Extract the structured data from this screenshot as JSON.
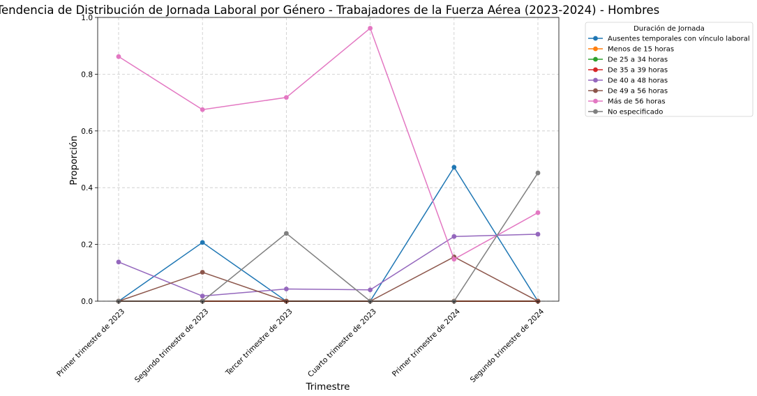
{
  "chart_data": {
    "type": "line",
    "title": "Tendencia de Distribución de Jornada Laboral por Género - Trabajadores de la Fuerza Aérea (2023-2024) - Hombres",
    "xlabel": "Trimestre",
    "ylabel": "Proporción",
    "ylim": [
      0,
      1
    ],
    "yticks": [
      "0.0",
      "0.2",
      "0.4",
      "0.6",
      "0.8",
      "1.0"
    ],
    "grid": true,
    "legend_title": "Duración de Jornada",
    "legend_position": "outside-right-top",
    "categories": [
      "Primer trimestre de 2023",
      "Segundo trimestre de 2023",
      "Tercer trimestre de 2023",
      "Cuarto trimestre de 2023",
      "Primer trimestre de 2024",
      "Segundo trimestre de 2024"
    ],
    "series": [
      {
        "name": "Ausentes temporales con vínculo laboral",
        "color": "#1f77b4",
        "values": [
          0,
          0.207,
          0,
          0,
          0.472,
          0
        ]
      },
      {
        "name": "Menos de 15 horas",
        "color": "#ff7f0e",
        "values": [
          0,
          0,
          0,
          0,
          0,
          0
        ]
      },
      {
        "name": "De 25 a 34 horas",
        "color": "#2ca02c",
        "values": [
          0,
          0,
          0,
          0,
          0,
          0
        ]
      },
      {
        "name": "De 35 a 39 horas",
        "color": "#d62728",
        "values": [
          0,
          0,
          0,
          0,
          0,
          0
        ]
      },
      {
        "name": "De 40 a 48 horas",
        "color": "#9467bd",
        "values": [
          0.138,
          0.018,
          0.043,
          0.04,
          0.228,
          0.236
        ]
      },
      {
        "name": "De 49 a 56 horas",
        "color": "#8c564b",
        "values": [
          0,
          0.102,
          0,
          0,
          0.156,
          0
        ]
      },
      {
        "name": "Más de 56 horas",
        "color": "#e377c2",
        "values": [
          0.862,
          0.675,
          0.718,
          0.962,
          0.148,
          0.312
        ]
      },
      {
        "name": "No especificado",
        "color": "#7f7f7f",
        "values": [
          0,
          0,
          0.239,
          0,
          0,
          0.452
        ]
      }
    ]
  }
}
